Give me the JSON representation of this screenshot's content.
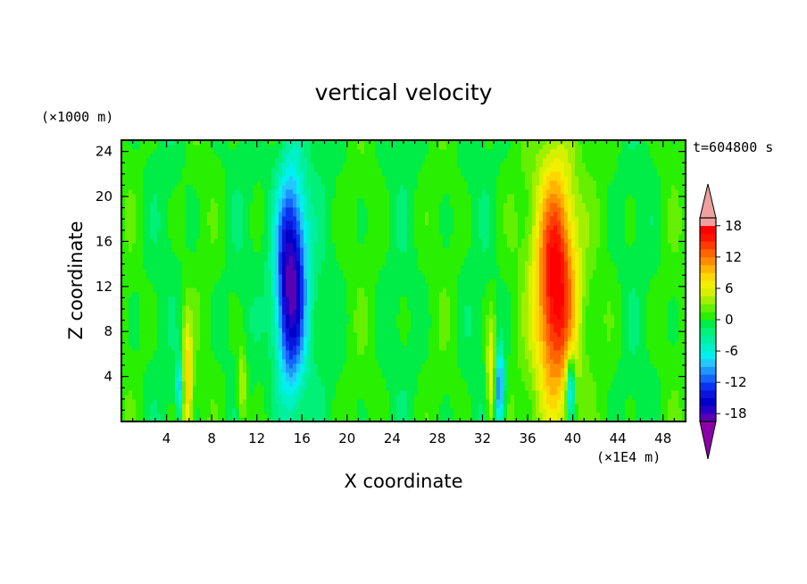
{
  "chart_data": {
    "type": "heatmap",
    "title": "vertical velocity",
    "xlabel": "X coordinate",
    "ylabel": "Z coordinate",
    "x_unit": "(×1E4 m)",
    "y_unit": "(×1000 m)",
    "time_label": "t=604800 s",
    "xlim": [
      0,
      50
    ],
    "ylim": [
      0,
      25
    ],
    "x_ticks": [
      4,
      8,
      12,
      16,
      20,
      24,
      28,
      32,
      36,
      40,
      44,
      48
    ],
    "y_ticks": [
      4,
      8,
      12,
      16,
      20,
      24
    ],
    "colorbar": {
      "levels": [
        -21,
        -19.5,
        -18,
        -16.5,
        -15,
        -13.5,
        -12,
        -10.5,
        -9,
        -7.5,
        -6,
        -4.5,
        -3,
        -1.5,
        0,
        1.5,
        3,
        4.5,
        6,
        7.5,
        9,
        10.5,
        12,
        13.5,
        15,
        16.5,
        18,
        19.5,
        21
      ],
      "tick_labels": [
        "18",
        "12",
        "6",
        "0",
        "-6",
        "-12",
        "-18"
      ],
      "tick_values": [
        18,
        12,
        6,
        0,
        -6,
        -12,
        -18
      ],
      "colors": [
        "#7d00a0",
        "#5a00b4",
        "#2800c8",
        "#0000c8",
        "#0a14dc",
        "#0a32f0",
        "#1464ff",
        "#1e96ff",
        "#23c8ff",
        "#00f0f0",
        "#00f0c8",
        "#00f0a0",
        "#00f078",
        "#00ec46",
        "#28f000",
        "#64f000",
        "#a0f000",
        "#d7f000",
        "#f0f000",
        "#ffd700",
        "#ffb400",
        "#ff8c00",
        "#ff6400",
        "#ff3c00",
        "#ff1400",
        "#ff0000",
        "#f0a0a0"
      ],
      "over_color": "#f0a0a0",
      "under_color": "#8c00aa"
    },
    "features": [
      {
        "x": 15.0,
        "z": 12.5,
        "min": -20,
        "sx": 1.0,
        "sz": 7.0
      },
      {
        "x": 38.5,
        "z": 12.0,
        "max": 19,
        "sx": 1.3,
        "sz": 8.0
      },
      {
        "x": 5.8,
        "z": 3.5,
        "max": 9,
        "sx": 0.35,
        "sz": 4.0
      },
      {
        "x": 5.2,
        "z": 3.0,
        "min": -10,
        "sx": 0.25,
        "sz": 2.0
      },
      {
        "x": 33.5,
        "z": 3.0,
        "min": -12,
        "sx": 0.3,
        "sz": 2.5
      },
      {
        "x": 32.8,
        "z": 4.0,
        "max": 8,
        "sx": 0.3,
        "sz": 3.5
      },
      {
        "x": 10.7,
        "z": 3.0,
        "max": 6,
        "sx": 0.3,
        "sz": 2.5
      },
      {
        "x": 39.8,
        "z": 3.0,
        "min": -12,
        "sx": 0.25,
        "sz": 2.0
      }
    ]
  }
}
